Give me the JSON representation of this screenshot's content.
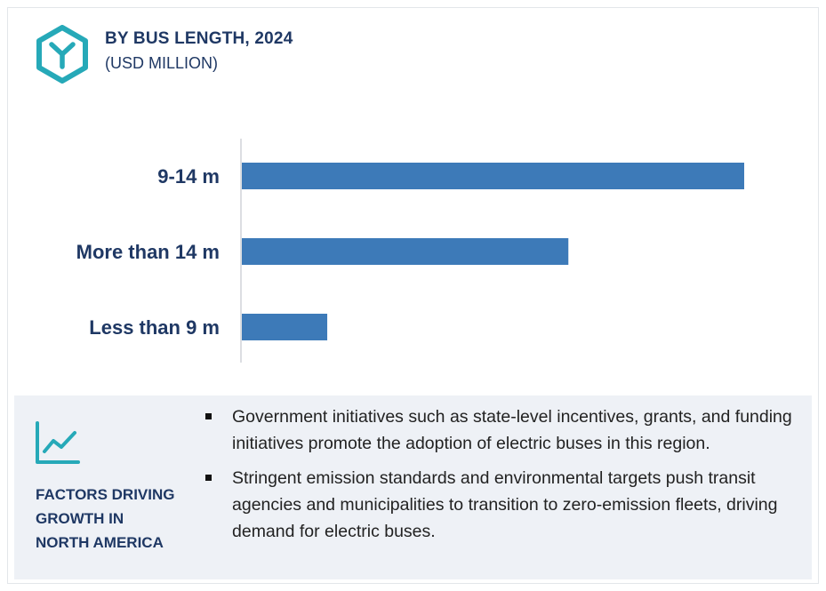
{
  "header": {
    "title": "BY BUS LENGTH, 2024",
    "subtitle": "(USD MILLION)",
    "icon": "hexagon-y-logo-icon"
  },
  "colors": {
    "bar": "#3d7ab8",
    "accent": "#26a9b8",
    "title": "#1f3864",
    "axis": "#d0d4d9",
    "footer_bg": "#eef1f6"
  },
  "chart_data": {
    "type": "bar",
    "orientation": "horizontal",
    "categories": [
      "9-14 m",
      "More than 14 m",
      "Less than 9 m"
    ],
    "values": [
      100,
      65,
      17
    ],
    "title": "BY BUS LENGTH, 2024",
    "subtitle": "(USD MILLION)",
    "xlabel": "",
    "ylabel": "",
    "xlim": [
      0,
      100
    ],
    "grid": false,
    "legend": "none"
  },
  "footer": {
    "icon": "trend-line-chart-icon",
    "label_lines": [
      "FACTORS DRIVING",
      "GROWTH IN",
      "NORTH AMERICA"
    ],
    "bullets": [
      "Government initiatives such as state-level incentives, grants, and funding initiatives promote the adoption of electric buses in this region.",
      "Stringent emission standards and environmental targets push transit agencies and municipalities to transition to zero-emission fleets, driving demand for electric buses."
    ]
  }
}
